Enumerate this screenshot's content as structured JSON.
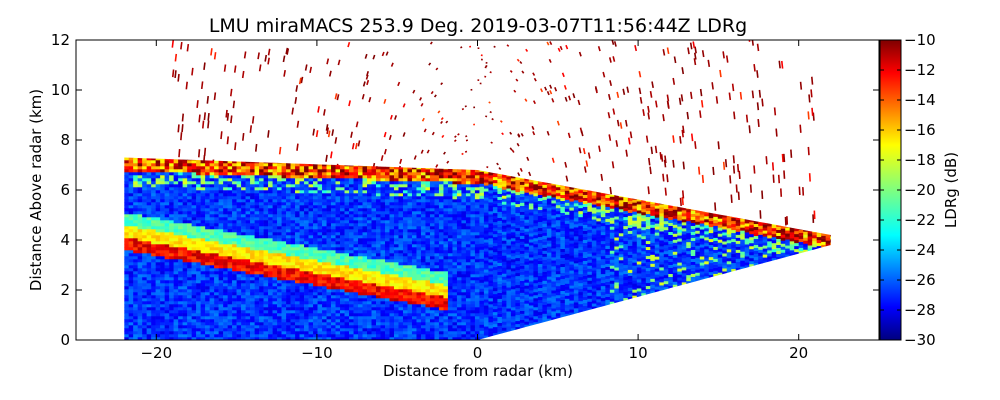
{
  "chart_data": {
    "type": "heatmap",
    "title": "LMU miraMACS 253.9 Deg. 2019-03-07T11:56:44Z  LDRg",
    "xlabel": "Distance from radar (km)",
    "ylabel": "Distance Above radar  (km)",
    "xlim": [
      -25,
      25
    ],
    "ylim": [
      0,
      12
    ],
    "xticks": [
      -20,
      -10,
      0,
      10,
      20
    ],
    "xtick_labels": [
      "−20",
      "−10",
      "0",
      "10",
      "20"
    ],
    "yticks": [
      0,
      2,
      4,
      6,
      8,
      10,
      12
    ],
    "ytick_labels": [
      "0",
      "2",
      "4",
      "6",
      "8",
      "10",
      "12"
    ],
    "grid": false,
    "scan": {
      "azimuth_deg": 253.9,
      "left_edge_x_km": -22,
      "right_edge_x_km": 22,
      "right_edge_top_km": 4,
      "cloud_top_left_km": 7.3,
      "cloud_top_center_km": 6.8,
      "cloud_top_right_km": 4.2,
      "sparse_echo_max_km": 12
    },
    "colorbar": {
      "label": "LDRg (dB)",
      "min": -30,
      "max": -10,
      "ticks": [
        -10,
        -12,
        -14,
        -16,
        -18,
        -20,
        -22,
        -24,
        -26,
        -28,
        -30
      ],
      "tick_labels": [
        "−10",
        "−12",
        "−14",
        "−16",
        "−18",
        "−20",
        "−22",
        "−24",
        "−26",
        "−28",
        "−30"
      ],
      "colormap": "jet",
      "colors": [
        "#00007f",
        "#0000ff",
        "#007fff",
        "#00ffff",
        "#7fff7f",
        "#ffff00",
        "#ff7f00",
        "#ff0000",
        "#7f0000"
      ]
    }
  }
}
